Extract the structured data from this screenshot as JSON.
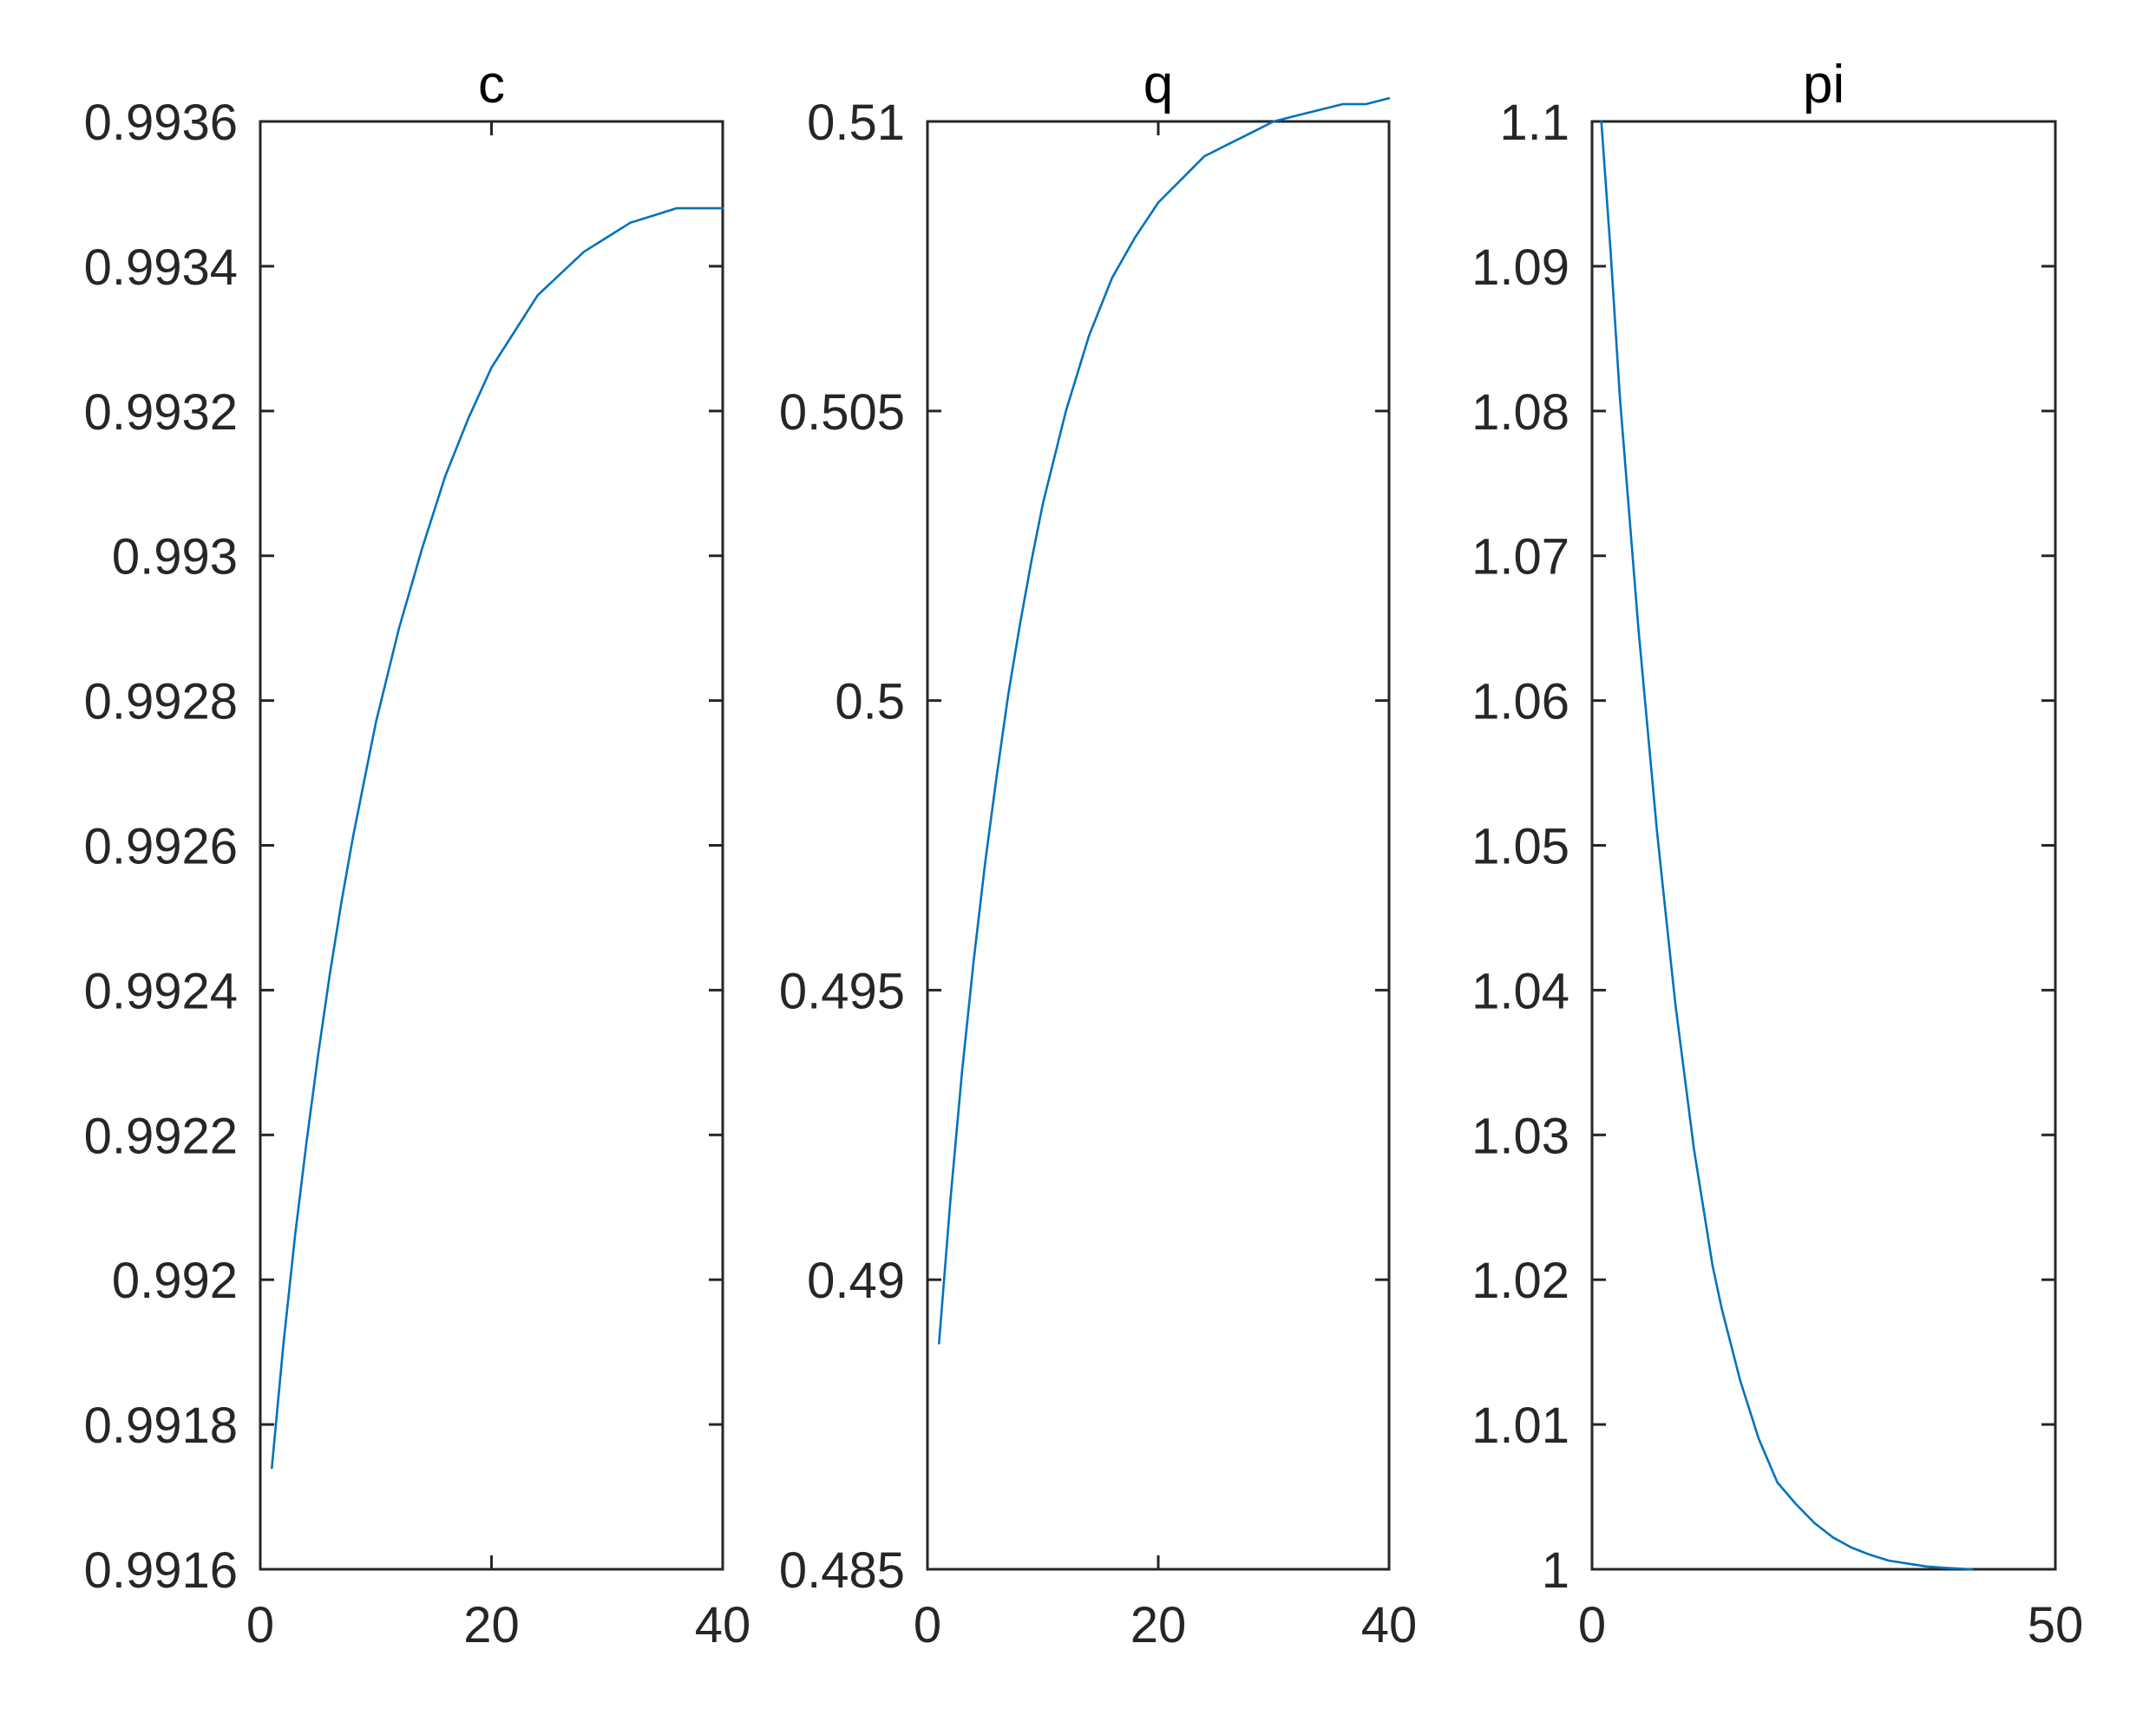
{
  "colors": {
    "line": "#0072BD",
    "axes": "#262626",
    "background": "#ffffff"
  },
  "chart_data": [
    {
      "type": "line",
      "title": "c",
      "xlabel": "",
      "ylabel": "",
      "xlim": [
        0,
        40
      ],
      "ylim": [
        0.9916,
        0.9936
      ],
      "xticks": [
        0,
        20,
        40
      ],
      "xtick_labels": [
        "0",
        "20",
        "40"
      ],
      "yticks": [
        0.9916,
        0.9918,
        0.992,
        0.9922,
        0.9924,
        0.9926,
        0.9928,
        0.993,
        0.9932,
        0.9934,
        0.9936
      ],
      "ytick_labels": [
        "0.9916",
        "0.9918",
        "0.992",
        "0.9922",
        "0.9924",
        "0.9926",
        "0.9928",
        "0.993",
        "0.9932",
        "0.9934",
        "0.9936"
      ],
      "grid": false,
      "series": [
        {
          "x": [
            1,
            2,
            3,
            4,
            5,
            6,
            7,
            8,
            9,
            10,
            12,
            14,
            16,
            18,
            20,
            22,
            24,
            26,
            28,
            30,
            32,
            34,
            36,
            38,
            40
          ],
          "values": [
            0.99174,
            0.99191,
            0.99206,
            0.99219,
            0.99231,
            0.99242,
            0.99252,
            0.99261,
            0.99269,
            0.99277,
            0.9929,
            0.99301,
            0.99311,
            0.99319,
            0.99326,
            0.99331,
            0.99336,
            0.99339,
            0.99342,
            0.99344,
            0.99346,
            0.99347,
            0.99348,
            0.99348,
            0.99348
          ]
        }
      ]
    },
    {
      "type": "line",
      "title": "q",
      "xlabel": "",
      "ylabel": "",
      "xlim": [
        0,
        40
      ],
      "ylim": [
        0.485,
        0.51
      ],
      "xticks": [
        0,
        20,
        40
      ],
      "xtick_labels": [
        "0",
        "20",
        "40"
      ],
      "yticks": [
        0.485,
        0.49,
        0.495,
        0.5,
        0.505,
        0.51
      ],
      "ytick_labels": [
        "0.485",
        "0.49",
        "0.495",
        "0.5",
        "0.505",
        "0.51"
      ],
      "grid": false,
      "series": [
        {
          "x": [
            1,
            2,
            3,
            4,
            5,
            6,
            7,
            8,
            9,
            10,
            12,
            14,
            16,
            18,
            20,
            22,
            24,
            26,
            28,
            30,
            32,
            34,
            36,
            38,
            40
          ],
          "values": [
            0.4889,
            0.4914,
            0.4936,
            0.4955,
            0.4972,
            0.4987,
            0.5001,
            0.5013,
            0.5024,
            0.5034,
            0.505,
            0.5063,
            0.5073,
            0.508,
            0.5086,
            0.509,
            0.5094,
            0.5096,
            0.5098,
            0.51,
            0.5101,
            0.5102,
            0.5103,
            0.5103,
            0.5104
          ]
        }
      ]
    },
    {
      "type": "line",
      "title": "pi",
      "xlabel": "",
      "ylabel": "",
      "xlim": [
        0,
        50
      ],
      "ylim": [
        1,
        1.1
      ],
      "xticks": [
        0,
        50
      ],
      "xtick_labels": [
        "0",
        "50"
      ],
      "yticks": [
        1,
        1.01,
        1.02,
        1.03,
        1.04,
        1.05,
        1.06,
        1.07,
        1.08,
        1.09,
        1.1
      ],
      "ytick_labels": [
        "1",
        "1.01",
        "1.02",
        "1.03",
        "1.04",
        "1.05",
        "1.06",
        "1.07",
        "1.08",
        "1.09",
        "1.1"
      ],
      "grid": false,
      "series": [
        {
          "x": [
            1,
            2,
            3,
            4,
            5,
            6,
            7,
            8,
            9,
            10,
            11,
            12,
            13,
            14,
            16,
            18,
            20,
            22,
            24,
            26,
            28,
            30,
            32,
            34,
            36,
            38,
            41
          ],
          "values": [
            1.1,
            1.091,
            1.081,
            1.073,
            1.065,
            1.058,
            1.051,
            1.045,
            1.039,
            1.034,
            1.029,
            1.025,
            1.021,
            1.018,
            1.013,
            1.009,
            1.006,
            1.0045,
            1.0032,
            1.0022,
            1.0015,
            1.001,
            1.0006,
            1.0004,
            1.0002,
            1.0001,
            1.0
          ]
        }
      ]
    }
  ]
}
